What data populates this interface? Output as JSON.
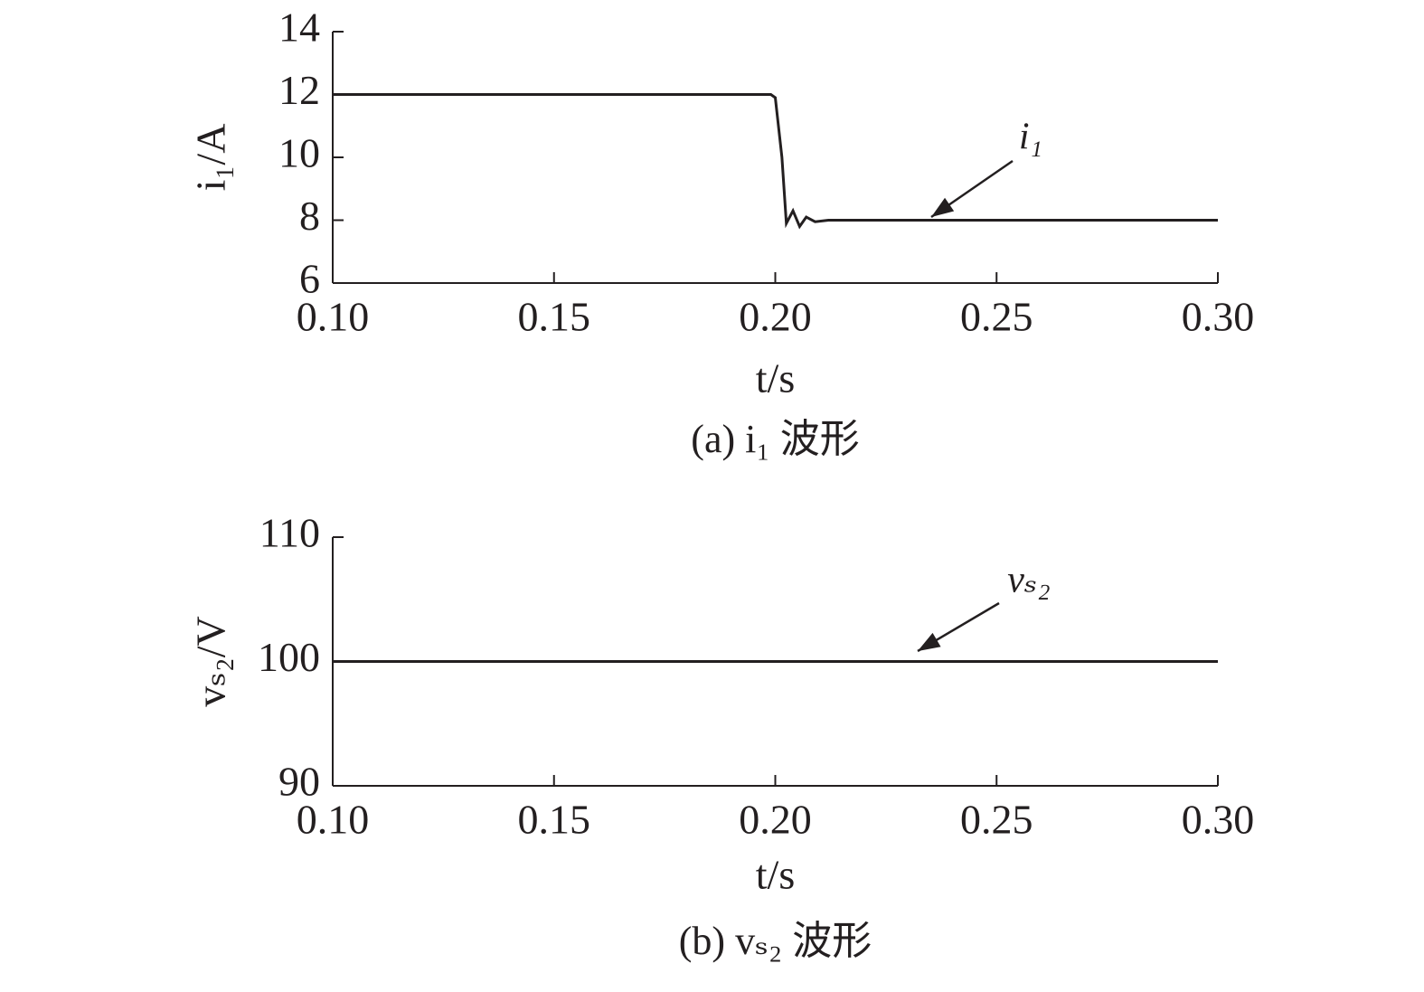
{
  "chart_data": [
    {
      "type": "line",
      "caption": "(a) i₁ 波形",
      "xlabel": "t/s",
      "ylabel": "i₁/A",
      "annotation": "i₁",
      "color": "#231f20",
      "x": [
        0.1,
        0.15,
        0.199,
        0.2,
        0.2015,
        0.2025,
        0.204,
        0.2055,
        0.207,
        0.209,
        0.212,
        0.215,
        0.25,
        0.3
      ],
      "values": [
        12,
        12,
        12,
        11.9,
        10,
        7.9,
        8.3,
        7.8,
        8.1,
        7.95,
        8,
        8,
        8,
        8
      ],
      "xlim": [
        0.1,
        0.3
      ],
      "xticks": [
        {
          "value": 0.1,
          "label": "0.10"
        },
        {
          "value": 0.15,
          "label": "0.15"
        },
        {
          "value": 0.2,
          "label": "0.20"
        },
        {
          "value": 0.25,
          "label": "0.25"
        },
        {
          "value": 0.3,
          "label": "0.30"
        }
      ],
      "ylim": [
        6,
        14
      ],
      "yticks": [
        6,
        8,
        10,
        12,
        14
      ]
    },
    {
      "type": "line",
      "caption": "(b) vₛ₂ 波形",
      "xlabel": "t/s",
      "ylabel": "vₛ₂/V",
      "annotation": "vₛ₂",
      "color": "#231f20",
      "x": [
        0.1,
        0.3
      ],
      "values": [
        100,
        100
      ],
      "xlim": [
        0.1,
        0.3
      ],
      "xticks": [
        {
          "value": 0.1,
          "label": "0.10"
        },
        {
          "value": 0.15,
          "label": "0.15"
        },
        {
          "value": 0.2,
          "label": "0.20"
        },
        {
          "value": 0.25,
          "label": "0.25"
        },
        {
          "value": 0.3,
          "label": "0.30"
        }
      ],
      "ylim": [
        90,
        110
      ],
      "yticks": [
        90,
        100,
        110
      ]
    }
  ]
}
